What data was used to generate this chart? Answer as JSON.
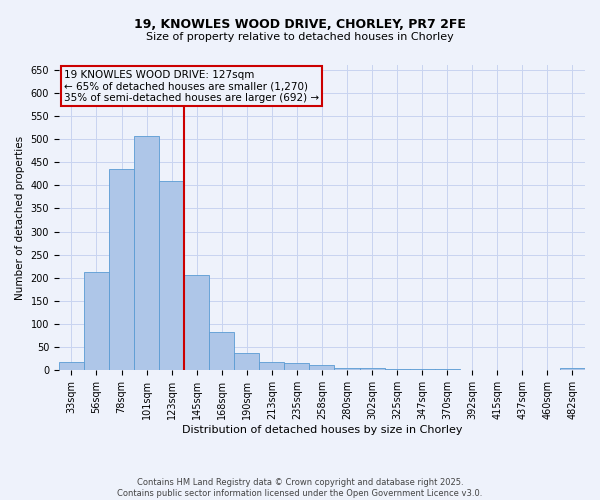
{
  "title1": "19, KNOWLES WOOD DRIVE, CHORLEY, PR7 2FE",
  "title2": "Size of property relative to detached houses in Chorley",
  "xlabel": "Distribution of detached houses by size in Chorley",
  "ylabel": "Number of detached properties",
  "footer": "Contains HM Land Registry data © Crown copyright and database right 2025.\nContains public sector information licensed under the Open Government Licence v3.0.",
  "categories": [
    "33sqm",
    "56sqm",
    "78sqm",
    "101sqm",
    "123sqm",
    "145sqm",
    "168sqm",
    "190sqm",
    "213sqm",
    "235sqm",
    "258sqm",
    "280sqm",
    "302sqm",
    "325sqm",
    "347sqm",
    "370sqm",
    "392sqm",
    "415sqm",
    "437sqm",
    "460sqm",
    "482sqm"
  ],
  "values": [
    17,
    213,
    435,
    507,
    410,
    207,
    83,
    37,
    17,
    15,
    12,
    6,
    5,
    3,
    2,
    2,
    1,
    0,
    0,
    0,
    4
  ],
  "bar_color": "#aec6e8",
  "bar_edge_color": "#5a9bd4",
  "red_line_color": "#cc0000",
  "annotation_box_text_line1": "19 KNOWLES WOOD DRIVE: 127sqm",
  "annotation_box_text_line2": "← 65% of detached houses are smaller (1,270)",
  "annotation_box_text_line3": "35% of semi-detached houses are larger (692) →",
  "bg_color": "#eef2fb",
  "grid_color": "#c8d4f0",
  "ylim": [
    0,
    660
  ],
  "yticks": [
    0,
    50,
    100,
    150,
    200,
    250,
    300,
    350,
    400,
    450,
    500,
    550,
    600,
    650
  ],
  "red_line_bin_index": 4,
  "title1_fontsize": 9,
  "title2_fontsize": 8,
  "xlabel_fontsize": 8,
  "ylabel_fontsize": 7.5,
  "tick_fontsize": 7,
  "footer_fontsize": 6,
  "annot_fontsize": 7.5
}
